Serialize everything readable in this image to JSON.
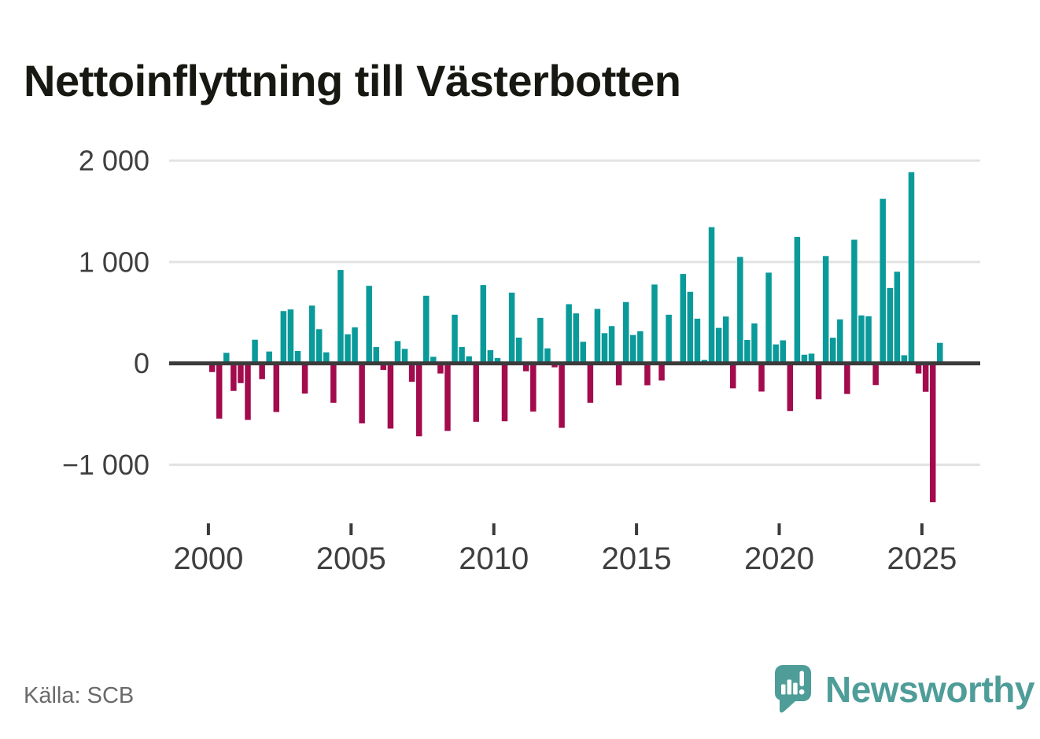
{
  "title": "Nettoinflyttning till Västerbotten",
  "source": "Källa: SCB",
  "brand": {
    "name": "Newsworthy",
    "color": "#4E9D99"
  },
  "chart_data": {
    "type": "bar",
    "title": "Nettoinflyttning till Västerbotten",
    "frequency": "quarterly",
    "start_period": "2000-Q1",
    "end_period": "2025-Q3",
    "values": [
      -86,
      -545,
      104,
      -272,
      -195,
      -558,
      233,
      -156,
      117,
      -480,
      516,
      532,
      122,
      -298,
      570,
      337,
      109,
      -389,
      921,
      287,
      355,
      -592,
      765,
      161,
      -65,
      -643,
      220,
      143,
      -182,
      -719,
      667,
      65,
      -100,
      -667,
      480,
      161,
      70,
      -576,
      773,
      130,
      52,
      -571,
      698,
      254,
      -78,
      -475,
      449,
      148,
      -39,
      -636,
      584,
      493,
      213,
      -389,
      537,
      298,
      368,
      -216,
      605,
      280,
      317,
      -216,
      778,
      -169,
      480,
      15,
      882,
      706,
      441,
      34,
      1344,
      350,
      462,
      -246,
      1050,
      231,
      394,
      -278,
      895,
      187,
      227,
      -470,
      1248,
      85,
      96,
      -354,
      1059,
      253,
      434,
      -302,
      1220,
      473,
      465,
      -214,
      1623,
      744,
      904,
      80,
      1886,
      -100,
      -280,
      -1370,
      202
    ],
    "xticks": [
      2000,
      2005,
      2010,
      2015,
      2020,
      2025
    ],
    "x_tick_labels": [
      "2000",
      "2005",
      "2010",
      "2015",
      "2020",
      "2025"
    ],
    "yticks": [
      2000,
      1000,
      0,
      -1000
    ],
    "y_tick_labels": [
      "2 000",
      "1 000",
      "0",
      "−1 000"
    ],
    "ylim": [
      -1500,
      2100
    ],
    "grid": "horizontal",
    "legend": "none",
    "positive_color": "#0A9A9A",
    "negative_color": "#A30B4D",
    "axis_text_color": "#3F3F3F",
    "zero_line_color": "#3B3B3B",
    "gridline_color": "#E3E3E3"
  }
}
